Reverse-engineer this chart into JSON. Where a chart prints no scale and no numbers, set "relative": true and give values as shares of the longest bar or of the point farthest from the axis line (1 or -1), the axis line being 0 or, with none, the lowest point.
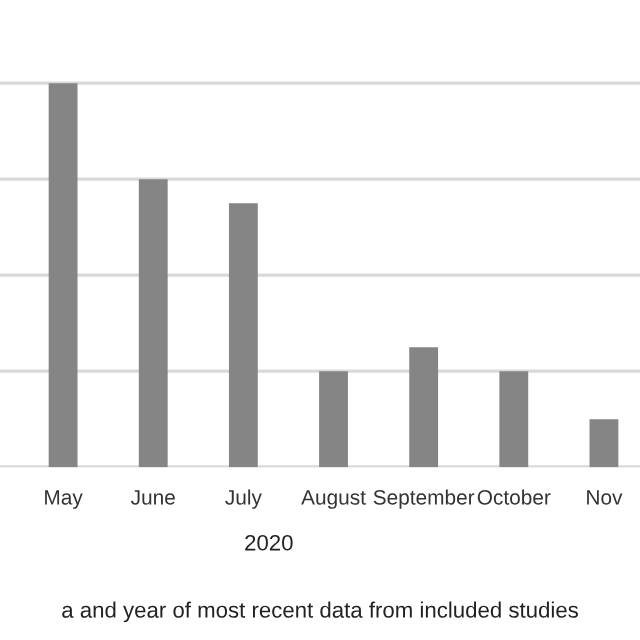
{
  "chart_data": {
    "type": "bar",
    "relative": true,
    "categories": [
      "May",
      "June",
      "July",
      "August",
      "September",
      "October",
      "Nov"
    ],
    "values": [
      1,
      0.75,
      0.6875,
      0.25,
      0.3125,
      0.25,
      0.125
    ],
    "color": "#858585",
    "xlabel": "a and year of most recent data from included studies",
    "annotations": [
      "2020"
    ],
    "grid": "y",
    "legend": false
  }
}
